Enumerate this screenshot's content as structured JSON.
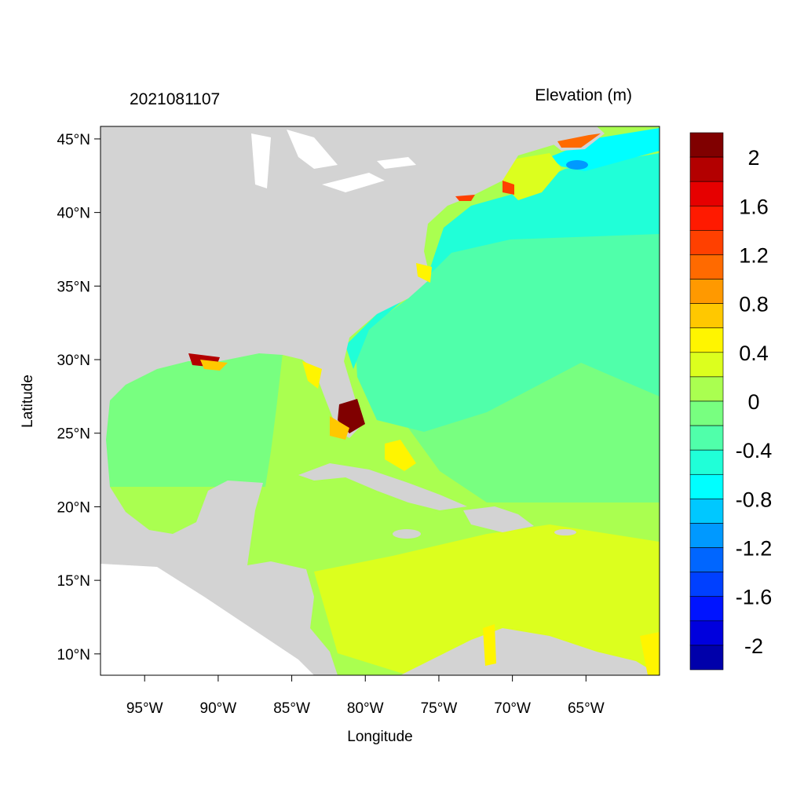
{
  "header": {
    "timestamp": "2021081107",
    "variable_title": "Elevation (m)"
  },
  "axes": {
    "xlabel": "Longitude",
    "ylabel": "Latitude",
    "lon_range": [
      -98,
      -60
    ],
    "lat_range": [
      8.55,
      45.85
    ],
    "x_ticks": [
      {
        "value": -95,
        "label": "95°W"
      },
      {
        "value": -90,
        "label": "90°W"
      },
      {
        "value": -85,
        "label": "85°W"
      },
      {
        "value": -80,
        "label": "80°W"
      },
      {
        "value": -75,
        "label": "75°W"
      },
      {
        "value": -70,
        "label": "70°W"
      },
      {
        "value": -65,
        "label": "65°W"
      }
    ],
    "y_ticks": [
      {
        "value": 45,
        "label": "45°N"
      },
      {
        "value": 40,
        "label": "40°N"
      },
      {
        "value": 35,
        "label": "35°N"
      },
      {
        "value": 30,
        "label": "30°N"
      },
      {
        "value": 25,
        "label": "25°N"
      },
      {
        "value": 20,
        "label": "20°N"
      },
      {
        "value": 15,
        "label": "15°N"
      },
      {
        "value": 10,
        "label": "10°N"
      }
    ]
  },
  "colors": {
    "land": "#d3d3d3",
    "no_data": "#ffffff"
  },
  "colorbar": {
    "colors": [
      "#800000",
      "#b30000",
      "#e60000",
      "#ff1a00",
      "#ff4000",
      "#ff6a00",
      "#ff9900",
      "#ffc800",
      "#fff500",
      "#dcff1e",
      "#aaff50",
      "#78ff80",
      "#50ffaa",
      "#20ffd8",
      "#00ffff",
      "#00c8ff",
      "#0099ff",
      "#0066ff",
      "#0040ff",
      "#0014ff",
      "#0000dd",
      "#0000aa"
    ],
    "labels": [
      "2",
      "1.6",
      "1.2",
      "0.8",
      "0.4",
      "0",
      "-0.4",
      "-0.8",
      "-1.2",
      "-1.6",
      "-2"
    ]
  }
}
